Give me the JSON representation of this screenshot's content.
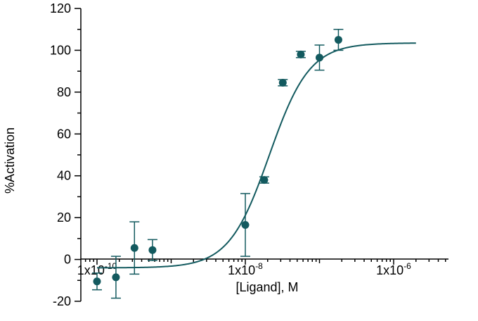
{
  "chart_data": {
    "type": "scatter",
    "xlabel": "[Ligand], M",
    "ylabel": "%Activation",
    "x_scale": "log",
    "xlim": [
      6e-11,
      3.5e-06
    ],
    "ylim": [
      -20,
      120
    ],
    "y_ticks": [
      -20,
      0,
      20,
      40,
      60,
      80,
      100,
      120
    ],
    "x_ticks": [
      {
        "value": 1e-10,
        "base": "1x10",
        "exp": "-10"
      },
      {
        "value": 1e-08,
        "base": "1x10",
        "exp": "-8"
      },
      {
        "value": 1e-06,
        "base": "1x10",
        "exp": "-6"
      }
    ],
    "grid": false,
    "legend": "none",
    "color": "#135a5f",
    "points": [
      {
        "x": 1e-10,
        "y": -10.5,
        "err": 4
      },
      {
        "x": 1.8e-10,
        "y": -8.5,
        "err": 10
      },
      {
        "x": 3.2e-10,
        "y": 5.5,
        "err": 12.5
      },
      {
        "x": 5.6e-10,
        "y": 4.5,
        "err": 5
      },
      {
        "x": 1e-08,
        "y": 16.5,
        "err": 15
      },
      {
        "x": 1.8e-08,
        "y": 38,
        "err": 1.5
      },
      {
        "x": 3.2e-08,
        "y": 84.5,
        "err": 1.5
      },
      {
        "x": 5.6e-08,
        "y": 98,
        "err": 1.5
      },
      {
        "x": 1e-07,
        "y": 96.5,
        "err": 6
      },
      {
        "x": 1.8e-07,
        "y": 105,
        "err": 5
      }
    ],
    "fit": {
      "model": "4PL",
      "bottom": -4,
      "top": 103.5,
      "ec50": 2.1e-08,
      "hill": 1.6
    }
  }
}
